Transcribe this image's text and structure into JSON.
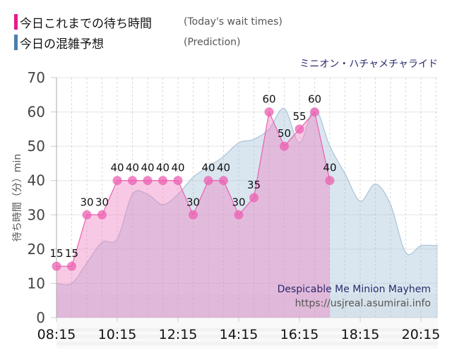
{
  "legend": [
    {
      "label_jp": "今日これまでの待ち時間",
      "label_en": "(Today's wait times)",
      "color": "#e8198c"
    },
    {
      "label_jp": "今日の混雑予想",
      "label_en": "(Prediction)",
      "color": "#4a7fb0"
    }
  ],
  "ride_name": "ミニオン・ハチャメチャライド",
  "watermark": {
    "title": "Despicable Me Minion Mayhem",
    "url": "https://usjreal.asumirai.info"
  },
  "chart_data": {
    "type": "area",
    "title": "ミニオン・ハチャメチャライド",
    "xlabel": "",
    "ylabel": "待ち時間（分）min",
    "ylim": [
      0,
      70
    ],
    "yticks": [
      0,
      10,
      20,
      30,
      40,
      50,
      60,
      70
    ],
    "xticks": [
      "08:15",
      "10:15",
      "12:15",
      "14:15",
      "16:15",
      "18:15",
      "20:15"
    ],
    "grid": true,
    "series": [
      {
        "name": "今日これまでの待ち時間 (Today's wait times)",
        "type": "area+markers",
        "x": [
          "08:15",
          "08:45",
          "09:15",
          "09:45",
          "10:15",
          "10:45",
          "11:15",
          "11:45",
          "12:15",
          "12:45",
          "13:15",
          "13:45",
          "14:15",
          "14:45",
          "15:15",
          "15:45",
          "16:15",
          "16:45",
          "17:15"
        ],
        "values": [
          15,
          15,
          30,
          30,
          40,
          40,
          40,
          40,
          40,
          30,
          40,
          40,
          30,
          35,
          60,
          50,
          55,
          60,
          40
        ]
      },
      {
        "name": "今日の混雑予想 (Prediction)",
        "type": "area",
        "x": [
          "08:15",
          "08:45",
          "09:15",
          "09:45",
          "10:15",
          "10:45",
          "11:15",
          "11:45",
          "12:15",
          "12:45",
          "13:15",
          "13:45",
          "14:15",
          "14:45",
          "15:15",
          "15:45",
          "16:15",
          "16:45",
          "17:15",
          "17:45",
          "18:15",
          "18:45",
          "19:15",
          "19:45",
          "20:15",
          "20:45"
        ],
        "values": [
          10,
          10,
          16,
          22,
          23,
          36,
          36,
          33,
          36,
          41,
          44,
          47,
          51,
          52,
          55,
          61,
          51,
          61,
          50,
          42,
          34,
          39,
          33,
          19,
          21,
          21
        ]
      }
    ]
  }
}
